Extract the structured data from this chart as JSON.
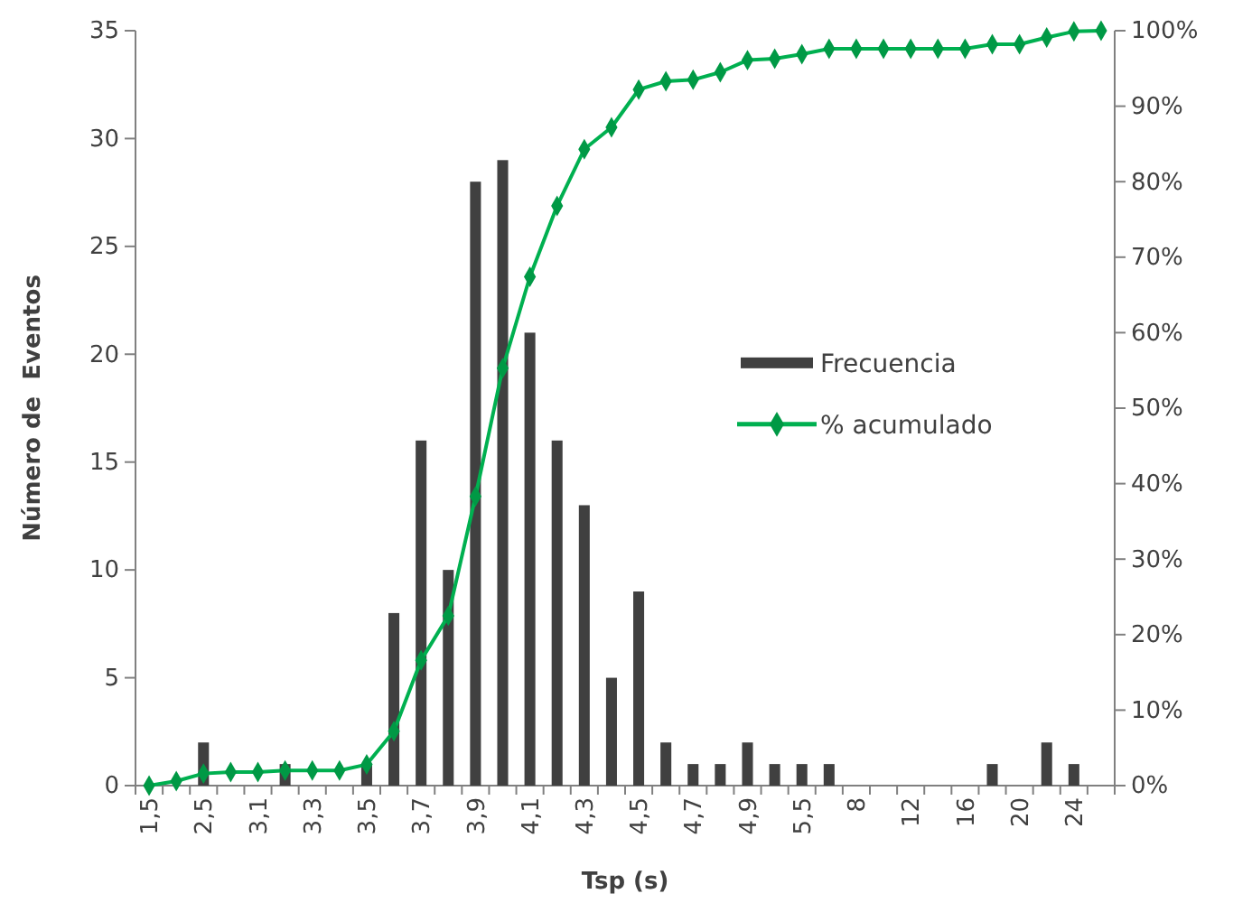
{
  "chart_data": {
    "type": "bar",
    "xlabel": "Tsp (s)",
    "ylabel": "Número de  Eventos",
    "categories": [
      "1,5",
      null,
      "2,5",
      null,
      "3,1",
      null,
      "3,3",
      null,
      "3,5",
      null,
      "3,7",
      null,
      "3,9",
      null,
      "4,1",
      null,
      "4,3",
      null,
      "4,5",
      null,
      "4,7",
      null,
      "4,9",
      null,
      "5,5",
      null,
      "8",
      null,
      "12",
      null,
      "16",
      null,
      "20",
      null,
      "24",
      null
    ],
    "series": [
      {
        "name": "Frecuencia",
        "color": "#404040",
        "values": [
          0,
          0,
          2,
          0,
          0,
          1,
          0,
          0,
          1,
          8,
          16,
          10,
          28,
          29,
          21,
          16,
          13,
          5,
          9,
          2,
          1,
          1,
          2,
          1,
          1,
          1,
          0,
          0,
          0,
          0,
          0,
          1,
          0,
          2,
          1,
          0
        ]
      },
      {
        "name": "% acumulado",
        "type": "line",
        "axis": "y2",
        "color": "#00b050",
        "values": [
          0,
          0.6,
          1.6,
          1.8,
          1.8,
          2.0,
          2.0,
          2.0,
          2.8,
          7.2,
          16.6,
          22.5,
          38.3,
          55.3,
          67.4,
          76.8,
          84.3,
          87.2,
          92.2,
          93.3,
          93.5,
          94.5,
          96.1,
          96.3,
          96.9,
          97.6,
          97.6,
          97.6,
          97.6,
          97.6,
          97.6,
          98.2,
          98.2,
          99.1,
          99.9,
          100
        ]
      }
    ],
    "ylim": [
      0,
      35
    ],
    "yticks": [
      0,
      5,
      10,
      15,
      20,
      25,
      30,
      35
    ],
    "y2lim": [
      0,
      100
    ],
    "y2ticks": [
      {
        "value": 0,
        "label": "0%"
      },
      {
        "value": 10,
        "label": "10%"
      },
      {
        "value": 20,
        "label": "20%"
      },
      {
        "value": 30,
        "label": "30%"
      },
      {
        "value": 40,
        "label": "40%"
      },
      {
        "value": 50,
        "label": "50%"
      },
      {
        "value": 60,
        "label": "60%"
      },
      {
        "value": 70,
        "label": "70%"
      },
      {
        "value": 80,
        "label": "80%"
      },
      {
        "value": 90,
        "label": "90%"
      },
      {
        "value": 100,
        "label": "100%"
      }
    ],
    "legend": "right",
    "grid": false,
    "marker": "diamond"
  }
}
